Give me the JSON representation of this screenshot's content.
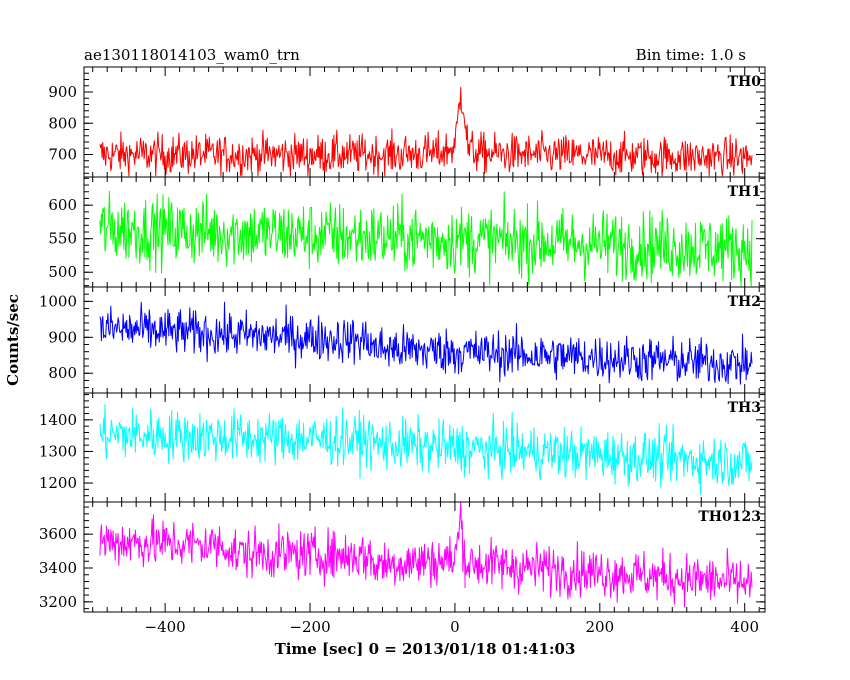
{
  "header": {
    "left_title": "ae130118014103_wam0_trn",
    "right_title": "Bin time: 1.0 s"
  },
  "chart_data": {
    "type": "line",
    "xlabel": "Time [sec] 0 = 2013/01/18 01:41:03",
    "ylabel": "Counts/sec",
    "xlim": [
      -512,
      428
    ],
    "xticks": [
      -400,
      -200,
      0,
      200,
      400
    ],
    "x_range": [
      -490,
      410
    ],
    "bin_time_s": 1.0,
    "panels": [
      {
        "name": "TH0",
        "color": "#ff0000",
        "ylim": [
          628,
          980
        ],
        "yticks": [
          700,
          800,
          900
        ],
        "segments": [
          {
            "x": [
              -490,
              -100,
              -20,
              0,
              8,
              12,
              18,
              30,
              100,
              410
            ],
            "y": [
              700,
              700,
              705,
              725,
              900,
              860,
              720,
              705,
              700,
              690
            ]
          }
        ],
        "noise_amplitude": 35
      },
      {
        "name": "TH1",
        "color": "#00ff00",
        "ylim": [
          478,
          642
        ],
        "yticks": [
          500,
          550,
          600
        ],
        "segments": [
          {
            "x": [
              -490,
              410
            ],
            "y": [
              565,
              535
            ]
          }
        ],
        "noise_amplitude": 28
      },
      {
        "name": "TH2",
        "color": "#0000ff",
        "ylim": [
          745,
          1040
        ],
        "yticks": [
          800,
          900,
          1000
        ],
        "segments": [
          {
            "x": [
              -490,
              -115
            ],
            "y": [
              925,
              890
            ]
          },
          {
            "x": [
              -115,
              410
            ],
            "y": [
              870,
              825
            ]
          }
        ],
        "noise_amplitude": 35
      },
      {
        "name": "TH3",
        "color": "#00ffff",
        "ylim": [
          1140,
          1485
        ],
        "yticks": [
          1200,
          1300,
          1400
        ],
        "segments": [
          {
            "x": [
              -490,
              -115
            ],
            "y": [
              1355,
              1335
            ]
          },
          {
            "x": [
              -115,
              410
            ],
            "y": [
              1325,
              1265
            ]
          }
        ],
        "noise_amplitude": 45
      },
      {
        "name": "TH0123",
        "color": "#ff00ff",
        "ylim": [
          3140,
          3790
        ],
        "yticks": [
          3200,
          3400,
          3600
        ],
        "segments": [
          {
            "x": [
              -490,
              -310
            ],
            "y": [
              3560,
              3530
            ]
          },
          {
            "x": [
              -310,
              -115
            ],
            "y": [
              3490,
              3470
            ]
          },
          {
            "x": [
              -115,
              0,
              8,
              14
            ],
            "y": [
              3420,
              3450,
              3700,
              3450
            ]
          },
          {
            "x": [
              14,
              410
            ],
            "y": [
              3430,
              3310
            ]
          }
        ],
        "noise_amplitude": 80
      }
    ]
  }
}
